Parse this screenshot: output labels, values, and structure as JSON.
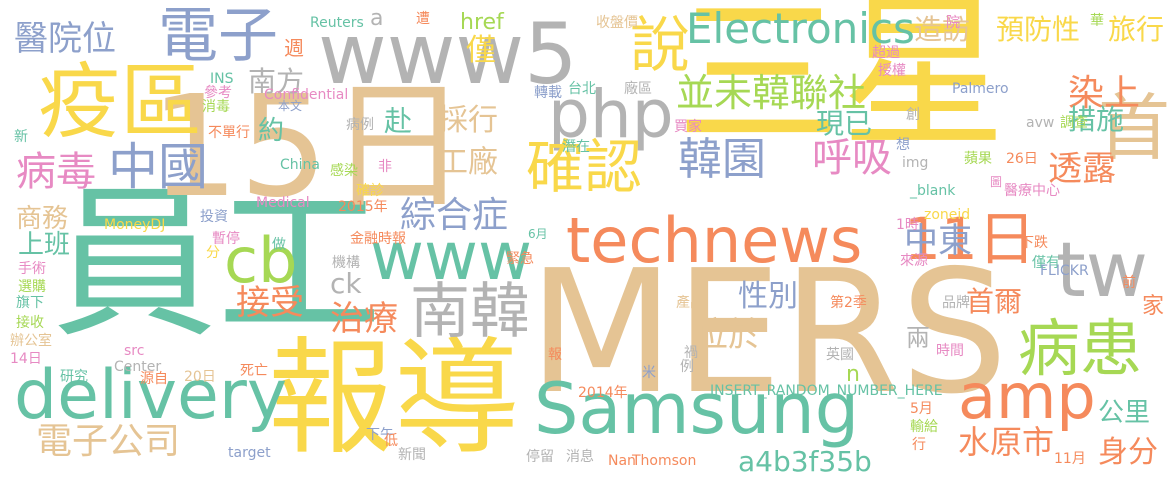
{
  "palette": {
    "yellow": "#f9d84a",
    "orange": "#f58a5c",
    "tan": "#e5c494",
    "blue": "#8da0cb",
    "green": "#66c2a5",
    "pink": "#e78ac3",
    "lime": "#a6d854",
    "gray": "#b3b3b3"
  },
  "words": [
    {
      "text": "三星",
      "color": "yellow",
      "orientation": "horizontal"
    },
    {
      "text": "MERS",
      "color": "tan",
      "orientation": "horizontal"
    },
    {
      "text": "員工",
      "color": "green",
      "orientation": "horizontal"
    },
    {
      "text": "報導",
      "color": "yellow",
      "orientation": "horizontal"
    },
    {
      "text": "15日",
      "color": "tan",
      "orientation": "horizontal"
    },
    {
      "text": "www5",
      "color": "gray",
      "orientation": "horizontal"
    },
    {
      "text": "疫區",
      "color": "yellow",
      "orientation": "horizontal"
    },
    {
      "text": "電子",
      "color": "blue",
      "orientation": "horizontal"
    },
    {
      "text": "Samsung",
      "color": "green",
      "orientation": "horizontal"
    },
    {
      "text": "technews",
      "color": "orange",
      "orientation": "horizontal"
    },
    {
      "text": "delivery",
      "color": "green",
      "orientation": "horizontal"
    },
    {
      "text": "www",
      "color": "green",
      "orientation": "horizontal"
    },
    {
      "text": "php",
      "color": "gray",
      "orientation": "horizontal"
    },
    {
      "text": "確認",
      "color": "yellow",
      "orientation": "horizontal"
    },
    {
      "text": "11日",
      "color": "orange",
      "orientation": "horizontal"
    },
    {
      "text": "南韓",
      "color": "gray",
      "orientation": "horizontal"
    },
    {
      "text": "病患",
      "color": "lime",
      "orientation": "horizontal"
    },
    {
      "text": "amp",
      "color": "orange",
      "orientation": "horizontal"
    },
    {
      "text": "Electronics",
      "color": "green",
      "orientation": "horizontal"
    },
    {
      "text": "中國",
      "color": "blue",
      "orientation": "horizontal"
    },
    {
      "text": "cb",
      "color": "lime",
      "orientation": "horizontal"
    },
    {
      "text": "tw",
      "color": "gray",
      "orientation": "horizontal"
    },
    {
      "text": "韓園",
      "color": "blue",
      "orientation": "horizontal"
    },
    {
      "text": "說",
      "color": "yellow",
      "orientation": "horizontal"
    },
    {
      "text": "首",
      "color": "tan",
      "orientation": "horizontal"
    },
    {
      "text": "醫院位",
      "color": "blue",
      "orientation": "horizontal"
    },
    {
      "text": "病毒",
      "color": "pink",
      "orientation": "horizontal"
    },
    {
      "text": "電子公司",
      "color": "tan",
      "orientation": "horizontal"
    },
    {
      "text": "並未韓聯社",
      "color": "lime",
      "orientation": "horizontal"
    },
    {
      "text": "綜合症",
      "color": "blue",
      "orientation": "horizontal"
    },
    {
      "text": "呼吸",
      "color": "pink",
      "orientation": "horizontal"
    },
    {
      "text": "中東",
      "color": "blue",
      "orientation": "horizontal"
    },
    {
      "text": "染上",
      "color": "orange",
      "orientation": "horizontal"
    },
    {
      "text": "透露",
      "color": "orange",
      "orientation": "horizontal"
    },
    {
      "text": "接受",
      "color": "orange",
      "orientation": "horizontal"
    },
    {
      "text": "治療",
      "color": "orange",
      "orientation": "horizontal"
    },
    {
      "text": "位於",
      "color": "tan",
      "orientation": "horizontal"
    },
    {
      "text": "首爾",
      "color": "orange",
      "orientation": "horizontal"
    },
    {
      "text": "水原市",
      "color": "orange",
      "orientation": "horizontal"
    },
    {
      "text": "身分",
      "color": "orange",
      "orientation": "horizontal"
    },
    {
      "text": "a4b3f35b",
      "color": "green",
      "orientation": "horizontal"
    },
    {
      "text": "預防性",
      "color": "yellow",
      "orientation": "horizontal"
    },
    {
      "text": "旅行",
      "color": "yellow",
      "orientation": "horizontal"
    },
    {
      "text": "造訪",
      "color": "tan",
      "orientation": "horizontal"
    },
    {
      "text": "南方",
      "color": "gray",
      "orientation": "horizontal"
    },
    {
      "text": "採行",
      "color": "tan",
      "orientation": "horizontal"
    },
    {
      "text": "工廠",
      "color": "tan",
      "orientation": "horizontal"
    },
    {
      "text": "現已",
      "color": "green",
      "orientation": "horizontal"
    },
    {
      "text": "措施",
      "color": "green",
      "orientation": "horizontal"
    },
    {
      "text": "性別",
      "color": "blue",
      "orientation": "horizontal"
    },
    {
      "text": "上班",
      "color": "green",
      "orientation": "horizontal"
    },
    {
      "text": "商務",
      "color": "tan",
      "orientation": "horizontal"
    },
    {
      "text": "公里",
      "color": "green",
      "orientation": "horizontal"
    },
    {
      "text": "僅",
      "color": "yellow",
      "orientation": "horizontal"
    },
    {
      "text": "約",
      "color": "green",
      "orientation": "horizontal"
    },
    {
      "text": "赴",
      "color": "green",
      "orientation": "vertical"
    },
    {
      "text": "兩",
      "color": "gray",
      "orientation": "horizontal"
    },
    {
      "text": "家",
      "color": "orange",
      "orientation": "horizontal"
    },
    {
      "text": "ck",
      "color": "gray",
      "orientation": "horizontal"
    },
    {
      "text": "n",
      "color": "lime",
      "orientation": "horizontal"
    },
    {
      "text": "href",
      "color": "lime",
      "orientation": "horizontal"
    },
    {
      "text": "a",
      "color": "gray",
      "orientation": "horizontal"
    },
    {
      "text": "Reuters",
      "color": "green",
      "orientation": "horizontal"
    },
    {
      "text": "遭",
      "color": "orange",
      "orientation": "horizontal"
    },
    {
      "text": "週",
      "color": "orange",
      "orientation": "horizontal"
    },
    {
      "text": "INS",
      "color": "green",
      "orientation": "horizontal"
    },
    {
      "text": "參考",
      "color": "pink",
      "orientation": "horizontal"
    },
    {
      "text": "Confidential",
      "color": "pink",
      "orientation": "horizontal"
    },
    {
      "text": "消毒",
      "color": "lime",
      "orientation": "horizontal"
    },
    {
      "text": "本文",
      "color": "blue",
      "orientation": "horizontal"
    },
    {
      "text": "不單行",
      "color": "orange",
      "orientation": "horizontal"
    },
    {
      "text": "新",
      "color": "green",
      "orientation": "horizontal"
    },
    {
      "text": "病例",
      "color": "gray",
      "orientation": "horizontal"
    },
    {
      "text": "China",
      "color": "green",
      "orientation": "horizontal"
    },
    {
      "text": "感染",
      "color": "lime",
      "orientation": "horizontal"
    },
    {
      "text": "非",
      "color": "pink",
      "orientation": "horizontal"
    },
    {
      "text": "確診",
      "color": "yellow",
      "orientation": "horizontal"
    },
    {
      "text": "2015年",
      "color": "orange",
      "orientation": "horizontal"
    },
    {
      "text": "Medical",
      "color": "pink",
      "orientation": "horizontal"
    },
    {
      "text": "投資",
      "color": "blue",
      "orientation": "horizontal"
    },
    {
      "text": "MoneyDJ",
      "color": "yellow",
      "orientation": "horizontal"
    },
    {
      "text": "暫停",
      "color": "pink",
      "orientation": "horizontal"
    },
    {
      "text": "做",
      "color": "green",
      "orientation": "horizontal"
    },
    {
      "text": "金融時報",
      "color": "orange",
      "orientation": "horizontal"
    },
    {
      "text": "6月",
      "color": "green",
      "orientation": "horizontal"
    },
    {
      "text": "分",
      "color": "yellow",
      "orientation": "horizontal"
    },
    {
      "text": "手術",
      "color": "pink",
      "orientation": "horizontal"
    },
    {
      "text": "機構",
      "color": "gray",
      "orientation": "horizontal"
    },
    {
      "text": "選購",
      "color": "lime",
      "orientation": "horizontal"
    },
    {
      "text": "旗下",
      "color": "green",
      "orientation": "horizontal"
    },
    {
      "text": "接收",
      "color": "lime",
      "orientation": "horizontal"
    },
    {
      "text": "辦公室",
      "color": "tan",
      "orientation": "horizontal"
    },
    {
      "text": "14日",
      "color": "pink",
      "orientation": "horizontal"
    },
    {
      "text": "src",
      "color": "pink",
      "orientation": "horizontal"
    },
    {
      "text": "Center",
      "color": "gray",
      "orientation": "horizontal"
    },
    {
      "text": "研究",
      "color": "green",
      "orientation": "horizontal"
    },
    {
      "text": "源自",
      "color": "orange",
      "orientation": "horizontal"
    },
    {
      "text": "20日",
      "color": "tan",
      "orientation": "horizontal"
    },
    {
      "text": "死亡",
      "color": "orange",
      "orientation": "horizontal"
    },
    {
      "text": "收盤價",
      "color": "tan",
      "orientation": "horizontal"
    },
    {
      "text": "台北",
      "color": "green",
      "orientation": "horizontal"
    },
    {
      "text": "廠區",
      "color": "gray",
      "orientation": "horizontal"
    },
    {
      "text": "轉載",
      "color": "blue",
      "orientation": "horizontal"
    },
    {
      "text": "買家",
      "color": "pink",
      "orientation": "horizontal"
    },
    {
      "text": "潛在",
      "color": "green",
      "orientation": "horizontal"
    },
    {
      "text": "院",
      "color": "pink",
      "orientation": "horizontal"
    },
    {
      "text": "華",
      "color": "lime",
      "orientation": "horizontal"
    },
    {
      "text": "超過",
      "color": "pink",
      "orientation": "horizontal"
    },
    {
      "text": "授權",
      "color": "pink",
      "orientation": "horizontal"
    },
    {
      "text": "Palmero",
      "color": "blue",
      "orientation": "horizontal"
    },
    {
      "text": "avw",
      "color": "gray",
      "orientation": "horizontal"
    },
    {
      "text": "調查",
      "color": "lime",
      "orientation": "horizontal"
    },
    {
      "text": "創",
      "color": "gray",
      "orientation": "horizontal"
    },
    {
      "text": "想",
      "color": "blue",
      "orientation": "horizontal"
    },
    {
      "text": "蘋果",
      "color": "lime",
      "orientation": "horizontal"
    },
    {
      "text": "26日",
      "color": "orange",
      "orientation": "horizontal"
    },
    {
      "text": "img",
      "color": "gray",
      "orientation": "horizontal"
    },
    {
      "text": "圖",
      "color": "pink",
      "orientation": "horizontal"
    },
    {
      "text": "_blank",
      "color": "green",
      "orientation": "horizontal"
    },
    {
      "text": "醫療中心",
      "color": "pink",
      "orientation": "horizontal"
    },
    {
      "text": "zoneid",
      "color": "yellow",
      "orientation": "horizontal"
    },
    {
      "text": "1時",
      "color": "pink",
      "orientation": "horizontal"
    },
    {
      "text": "下跌",
      "color": "orange",
      "orientation": "horizontal"
    },
    {
      "text": "僅有",
      "color": "green",
      "orientation": "horizontal"
    },
    {
      "text": "來源",
      "color": "pink",
      "orientation": "horizontal"
    },
    {
      "text": "FLICKR",
      "color": "blue",
      "orientation": "horizontal"
    },
    {
      "text": "前",
      "color": "orange",
      "orientation": "horizontal"
    },
    {
      "text": "品牌",
      "color": "gray",
      "orientation": "horizontal"
    },
    {
      "text": "第2季",
      "color": "orange",
      "orientation": "horizontal"
    },
    {
      "text": "產品",
      "color": "tan",
      "orientation": "horizontal"
    },
    {
      "text": "英國",
      "color": "gray",
      "orientation": "horizontal"
    },
    {
      "text": "時間",
      "color": "pink",
      "orientation": "horizontal"
    },
    {
      "text": "米",
      "color": "blue",
      "orientation": "horizontal"
    },
    {
      "text": "INSERT_RANDOM_NUMBER_HERE",
      "color": "green",
      "orientation": "horizontal"
    },
    {
      "text": "2014年",
      "color": "orange",
      "orientation": "horizontal"
    },
    {
      "text": "5月",
      "color": "orange",
      "orientation": "horizontal"
    },
    {
      "text": "輸給",
      "color": "lime",
      "orientation": "horizontal"
    },
    {
      "text": "下午",
      "color": "blue",
      "orientation": "horizontal"
    },
    {
      "text": "target",
      "color": "blue",
      "orientation": "horizontal"
    },
    {
      "text": "低",
      "color": "orange",
      "orientation": "horizontal"
    },
    {
      "text": "新聞",
      "color": "gray",
      "orientation": "horizontal"
    },
    {
      "text": "停留",
      "color": "gray",
      "orientation": "horizontal"
    },
    {
      "text": "消息",
      "color": "gray",
      "orientation": "horizontal"
    },
    {
      "text": "Nan",
      "color": "orange",
      "orientation": "horizontal"
    },
    {
      "text": "Thomson",
      "color": "orange",
      "orientation": "horizontal"
    },
    {
      "text": "11月",
      "color": "orange",
      "orientation": "horizontal"
    },
    {
      "text": "行",
      "color": "orange",
      "orientation": "horizontal"
    },
    {
      "text": "報",
      "color": "orange",
      "orientation": "horizontal"
    },
    {
      "text": "禍",
      "color": "gray",
      "orientation": "horizontal"
    },
    {
      "text": "例",
      "color": "gray",
      "orientation": "horizontal"
    },
    {
      "text": "緊急",
      "color": "orange",
      "orientation": "horizontal"
    }
  ]
}
